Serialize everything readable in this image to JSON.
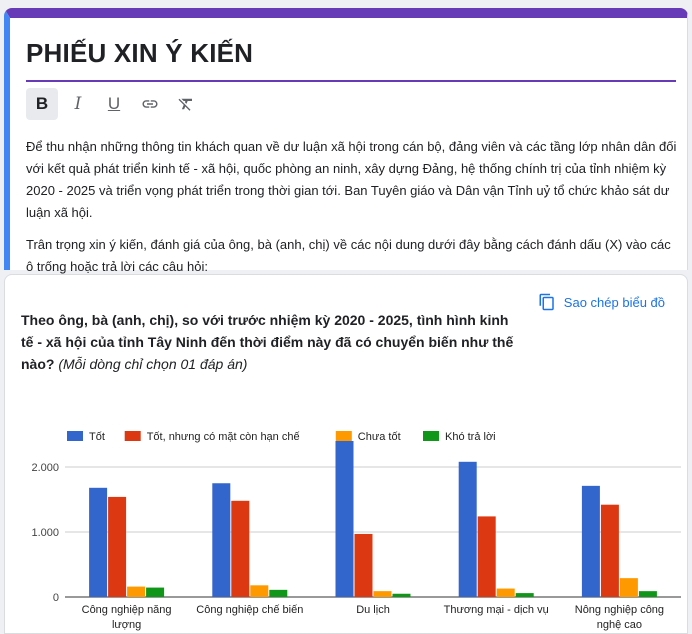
{
  "form": {
    "title": "PHIẾU XIN Ý KIẾN",
    "toolbar": [
      {
        "name": "bold-button",
        "glyph": "B"
      },
      {
        "name": "italic-button",
        "glyph": "I"
      },
      {
        "name": "underline-button",
        "glyph": "U"
      },
      {
        "name": "link-button",
        "glyph": "link-icon"
      },
      {
        "name": "clear-format-button",
        "glyph": "clear-format-icon"
      }
    ],
    "description": [
      "Để thu nhận những thông tin khách quan về dư luận xã hội trong cán bộ, đảng viên và các tầng lớp nhân dân đối với kết quả phát triển kinh tế - xã hội, quốc phòng an ninh, xây dựng Đảng, hệ thống chính trị của tỉnh nhiệm kỳ 2020 - 2025 và triển vọng phát triển trong thời gian tới. Ban Tuyên giáo và Dân vận Tỉnh uỷ tổ chức khảo sát dư luận xã hội.",
      "Trân trọng xin ý kiến, đánh giá của ông, bà (anh, chị) về các nội dung dưới đây bằng cách đánh dấu (X) vào các ô trống hoặc trả lời các câu hỏi:"
    ]
  },
  "question_card": {
    "copy_label": "Sao chép biểu đồ",
    "question_text": "Theo ông, bà (anh, chị), so với trước nhiệm kỳ 2020 - 2025, tình hình kinh tế - xã hội của tỉnh Tây Ninh đến thời điểm này đã có chuyển biến như thế nào?",
    "question_hint": "(Mỗi dòng chỉ chọn 01 đáp án)"
  },
  "chart_data": {
    "type": "bar",
    "categories": [
      "Công nghiệp năng lượng",
      "Công nghiệp chế biến",
      "Du lịch",
      "Thương mại - dịch vụ",
      "Nông nghiệp công nghệ cao"
    ],
    "category_lines": [
      [
        "Công nghiệp năng",
        "lượng"
      ],
      [
        "Công nghiệp chế biến"
      ],
      [
        "Du lịch"
      ],
      [
        "Thương mại - dịch vụ"
      ],
      [
        "Nông nghiệp công",
        "nghệ cao"
      ]
    ],
    "series": [
      {
        "name": "Tốt",
        "color": "#3366cc",
        "values": [
          1680,
          1750,
          2400,
          2080,
          1710
        ]
      },
      {
        "name": "Tốt, nhưng có mặt còn hạn chế",
        "color": "#dc3912",
        "values": [
          1540,
          1480,
          970,
          1240,
          1420
        ]
      },
      {
        "name": "Chưa tốt",
        "color": "#ff9900",
        "values": [
          160,
          180,
          90,
          130,
          290
        ]
      },
      {
        "name": "Khó trả lời",
        "color": "#109618",
        "values": [
          145,
          110,
          50,
          60,
          90
        ]
      }
    ],
    "yticks": [
      {
        "value": 0,
        "label": "0"
      },
      {
        "value": 1000,
        "label": "1.000"
      },
      {
        "value": 2000,
        "label": "2.000"
      }
    ],
    "ylim": [
      0,
      2400
    ],
    "grid": true,
    "legend": "top"
  }
}
